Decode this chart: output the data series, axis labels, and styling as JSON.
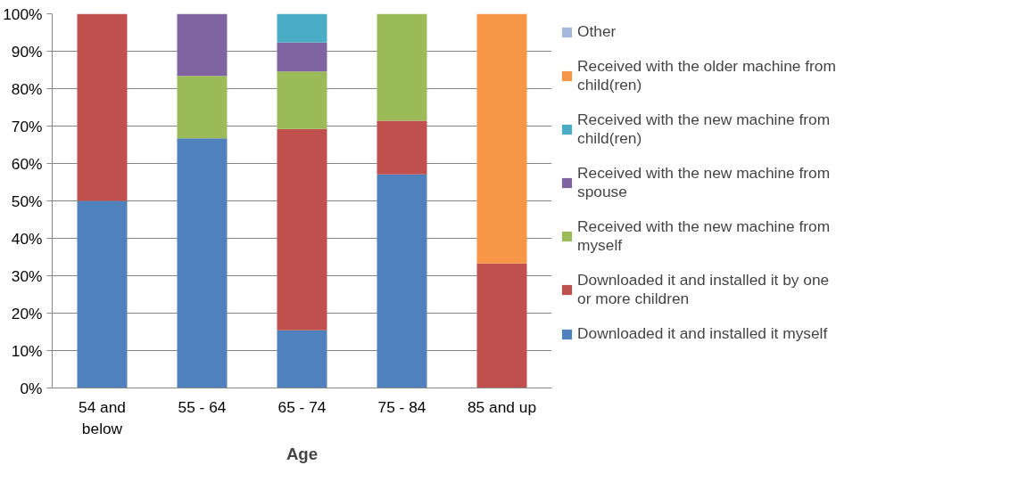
{
  "chart_data": {
    "type": "bar",
    "stacked": true,
    "xlabel": "Age",
    "categories": [
      "54 and below",
      "55 - 64",
      "65 - 74",
      "75 - 84",
      "85 and up"
    ],
    "series": [
      {
        "name": "Downloaded it and installed it myself",
        "color": "#4f81bd",
        "values": [
          50,
          66.7,
          15.4,
          57.1,
          0
        ]
      },
      {
        "name": "Downloaded it and installed it by one or more children",
        "color": "#c0504d",
        "values": [
          50,
          0,
          53.8,
          14.3,
          33.3
        ]
      },
      {
        "name": "Received with the new machine from myself",
        "color": "#9bbb59",
        "values": [
          0,
          16.7,
          15.4,
          28.6,
          0
        ]
      },
      {
        "name": "Received with the new machine from spouse",
        "color": "#8064a2",
        "values": [
          0,
          16.6,
          7.7,
          0,
          0
        ]
      },
      {
        "name": "Received with the new machine from child(ren)",
        "color": "#4bacc6",
        "values": [
          0,
          0,
          7.7,
          0,
          0
        ]
      },
      {
        "name": "Received with the older machine from child(ren)",
        "color": "#f79646",
        "values": [
          0,
          0,
          0,
          0,
          66.7
        ]
      },
      {
        "name": "Other",
        "color": "#a5b9dc",
        "values": [
          0,
          0,
          0,
          0,
          0
        ]
      }
    ],
    "ylim": [
      0,
      100
    ],
    "yticks": [
      {
        "value": 0,
        "label": "0%"
      },
      {
        "value": 10,
        "label": "10%"
      },
      {
        "value": 20,
        "label": "20%"
      },
      {
        "value": 30,
        "label": "30%"
      },
      {
        "value": 40,
        "label": "40%"
      },
      {
        "value": 50,
        "label": "50%"
      },
      {
        "value": 60,
        "label": "60%"
      },
      {
        "value": 70,
        "label": "70%"
      },
      {
        "value": 80,
        "label": "80%"
      },
      {
        "value": 90,
        "label": "90%"
      },
      {
        "value": 100,
        "label": "100%"
      }
    ],
    "grid": "y",
    "legend": "right"
  }
}
